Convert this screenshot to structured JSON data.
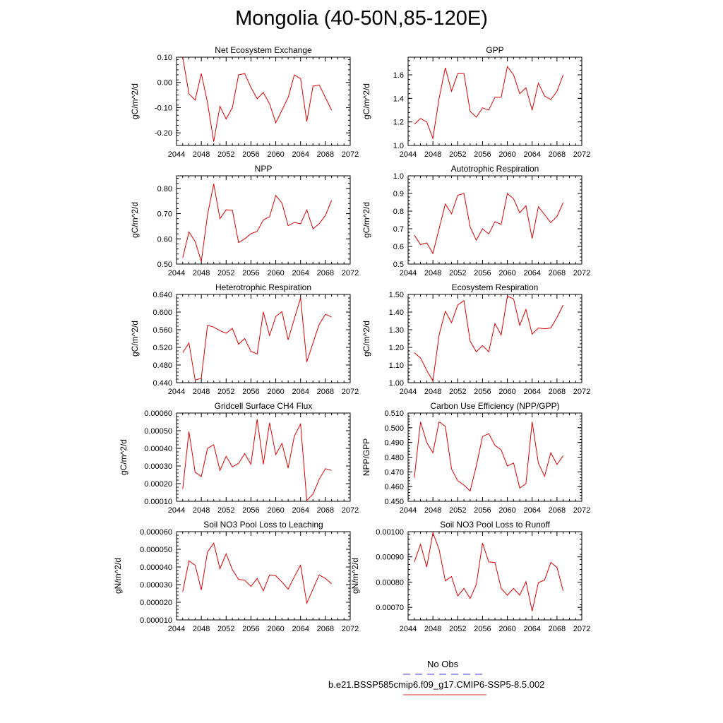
{
  "page": {
    "title": "Mongolia (40-50N,85-120E)"
  },
  "legend": {
    "entries": [
      {
        "label": "No Obs",
        "color": "#3b3bdc",
        "style": "dashed"
      },
      {
        "label": "b.e21.BSSP585cmip6.f09_g17.CMIP6-SSP5-8.5.002",
        "color": "#e03030",
        "style": "solid"
      }
    ]
  },
  "chart_data": [
    {
      "type": "line",
      "title": "Net Ecosystem Exchange",
      "ylabel": "gC/m^2/d",
      "xlim": [
        2044,
        2072
      ],
      "ylim": [
        -0.25,
        0.1
      ],
      "xticks": [
        "2044",
        "2048",
        "2052",
        "2056",
        "2060",
        "2064",
        "2068",
        "2072"
      ],
      "yticks": [
        0.1,
        0.0,
        -0.1,
        -0.2
      ],
      "ytick_labels": [
        "0.10",
        "0.00",
        "-0.10",
        "-0.20"
      ],
      "series": [
        {
          "color": "#e00000",
          "x": [
            2045,
            2046,
            2047,
            2048,
            2049,
            2050,
            2051,
            2052,
            2053,
            2054,
            2055,
            2056,
            2057,
            2058,
            2059,
            2060,
            2061,
            2062,
            2063,
            2064,
            2065,
            2066,
            2067,
            2068,
            2069
          ],
          "values": [
            0.1,
            -0.045,
            -0.07,
            0.035,
            -0.08,
            -0.235,
            -0.095,
            -0.145,
            -0.1,
            0.03,
            0.035,
            -0.02,
            -0.065,
            -0.04,
            -0.085,
            -0.16,
            -0.11,
            -0.06,
            0.03,
            0.015,
            -0.155,
            -0.015,
            -0.01,
            -0.06,
            -0.11
          ]
        }
      ]
    },
    {
      "type": "line",
      "title": "GPP",
      "ylabel": "gC/m^2/d",
      "xlim": [
        2044,
        2072
      ],
      "ylim": [
        1.0,
        1.75
      ],
      "xticks": [
        "2044",
        "2048",
        "2052",
        "2056",
        "2060",
        "2064",
        "2068",
        "2072"
      ],
      "yticks": [
        1.0,
        1.2,
        1.4,
        1.6
      ],
      "ytick_labels": [
        "1.0",
        "1.2",
        "1.4",
        "1.6"
      ],
      "series": [
        {
          "color": "#e00000",
          "x": [
            2045,
            2046,
            2047,
            2048,
            2049,
            2050,
            2051,
            2052,
            2053,
            2054,
            2055,
            2056,
            2057,
            2058,
            2059,
            2060,
            2061,
            2062,
            2063,
            2064,
            2065,
            2066,
            2067,
            2068,
            2069
          ],
          "values": [
            1.18,
            1.23,
            1.2,
            1.06,
            1.4,
            1.66,
            1.46,
            1.61,
            1.61,
            1.29,
            1.24,
            1.32,
            1.3,
            1.41,
            1.41,
            1.67,
            1.6,
            1.44,
            1.49,
            1.3,
            1.53,
            1.42,
            1.39,
            1.46,
            1.6
          ]
        }
      ]
    },
    {
      "type": "line",
      "title": "NPP",
      "ylabel": "gC/m^2/d",
      "xlim": [
        2044,
        2072
      ],
      "ylim": [
        0.5,
        0.85
      ],
      "xticks": [
        "2044",
        "2048",
        "2052",
        "2056",
        "2060",
        "2064",
        "2068",
        "2072"
      ],
      "yticks": [
        0.5,
        0.6,
        0.7,
        0.8
      ],
      "ytick_labels": [
        "0.50",
        "0.60",
        "0.70",
        "0.80"
      ],
      "series": [
        {
          "color": "#e00000",
          "x": [
            2045,
            2046,
            2047,
            2048,
            2049,
            2050,
            2051,
            2052,
            2053,
            2054,
            2055,
            2056,
            2057,
            2058,
            2059,
            2060,
            2061,
            2062,
            2063,
            2064,
            2065,
            2066,
            2067,
            2068,
            2069
          ],
          "values": [
            0.525,
            0.627,
            0.59,
            0.51,
            0.695,
            0.818,
            0.68,
            0.715,
            0.713,
            0.585,
            0.6,
            0.62,
            0.63,
            0.675,
            0.688,
            0.772,
            0.742,
            0.652,
            0.665,
            0.66,
            0.715,
            0.64,
            0.66,
            0.693,
            0.752
          ]
        }
      ]
    },
    {
      "type": "line",
      "title": "Autotrophic Respiration",
      "ylabel": "gC/m^2/d",
      "xlim": [
        2044,
        2072
      ],
      "ylim": [
        0.5,
        1.0
      ],
      "xticks": [
        "2044",
        "2048",
        "2052",
        "2056",
        "2060",
        "2064",
        "2068",
        "2072"
      ],
      "yticks": [
        0.5,
        0.6,
        0.7,
        0.8,
        0.9,
        1.0
      ],
      "ytick_labels": [
        "0.5",
        "0.6",
        "0.7",
        "0.8",
        "0.9",
        "1.0"
      ],
      "series": [
        {
          "color": "#e00000",
          "x": [
            2045,
            2046,
            2047,
            2048,
            2049,
            2050,
            2051,
            2052,
            2053,
            2054,
            2055,
            2056,
            2057,
            2058,
            2059,
            2060,
            2061,
            2062,
            2063,
            2064,
            2065,
            2066,
            2067,
            2068,
            2069
          ],
          "values": [
            0.665,
            0.61,
            0.62,
            0.56,
            0.7,
            0.84,
            0.785,
            0.89,
            0.9,
            0.71,
            0.635,
            0.7,
            0.67,
            0.74,
            0.725,
            0.9,
            0.87,
            0.79,
            0.83,
            0.645,
            0.825,
            0.78,
            0.735,
            0.77,
            0.848
          ]
        }
      ]
    },
    {
      "type": "line",
      "title": "Heterotrophic Respiration",
      "ylabel": "gC/m^2/d",
      "xlim": [
        2044,
        2072
      ],
      "ylim": [
        0.44,
        0.64
      ],
      "xticks": [
        "2044",
        "2048",
        "2052",
        "2056",
        "2060",
        "2064",
        "2068",
        "2072"
      ],
      "yticks": [
        0.44,
        0.48,
        0.52,
        0.56,
        0.6,
        0.64
      ],
      "ytick_labels": [
        "0.440",
        "0.480",
        "0.520",
        "0.560",
        "0.600",
        "0.640"
      ],
      "series": [
        {
          "color": "#e00000",
          "x": [
            2045,
            2046,
            2047,
            2048,
            2049,
            2050,
            2051,
            2052,
            2053,
            2054,
            2055,
            2056,
            2057,
            2058,
            2059,
            2060,
            2061,
            2062,
            2063,
            2064,
            2065,
            2066,
            2067,
            2068,
            2069
          ],
          "values": [
            0.508,
            0.53,
            0.446,
            0.45,
            0.57,
            0.566,
            0.558,
            0.552,
            0.563,
            0.527,
            0.54,
            0.511,
            0.505,
            0.6,
            0.547,
            0.59,
            0.601,
            0.537,
            0.585,
            0.632,
            0.487,
            0.53,
            0.572,
            0.595,
            0.589
          ]
        }
      ]
    },
    {
      "type": "line",
      "title": "Ecosystem Respiration",
      "ylabel": "gC/m^2/d",
      "xlim": [
        2044,
        2072
      ],
      "ylim": [
        1.0,
        1.5
      ],
      "xticks": [
        "2044",
        "2048",
        "2052",
        "2056",
        "2060",
        "2064",
        "2068",
        "2072"
      ],
      "yticks": [
        1.0,
        1.1,
        1.2,
        1.3,
        1.4,
        1.5
      ],
      "ytick_labels": [
        "1.00",
        "1.10",
        "1.20",
        "1.30",
        "1.40",
        "1.50"
      ],
      "series": [
        {
          "color": "#e00000",
          "x": [
            2045,
            2046,
            2047,
            2048,
            2049,
            2050,
            2051,
            2052,
            2053,
            2054,
            2055,
            2056,
            2057,
            2058,
            2059,
            2060,
            2061,
            2062,
            2063,
            2064,
            2065,
            2066,
            2067,
            2068,
            2069
          ],
          "values": [
            1.17,
            1.14,
            1.07,
            1.01,
            1.27,
            1.405,
            1.34,
            1.44,
            1.465,
            1.235,
            1.175,
            1.21,
            1.175,
            1.335,
            1.27,
            1.49,
            1.475,
            1.325,
            1.415,
            1.275,
            1.31,
            1.305,
            1.31,
            1.37,
            1.44
          ]
        }
      ]
    },
    {
      "type": "line",
      "title": "Gridcell Surface CH4 Flux",
      "ylabel": "gC/m^2/d",
      "xlim": [
        2044,
        2072
      ],
      "ylim": [
        0.0001,
        0.0006
      ],
      "xticks": [
        "2044",
        "2048",
        "2052",
        "2056",
        "2060",
        "2064",
        "2068",
        "2072"
      ],
      "yticks": [
        0.0001,
        0.0002,
        0.0003,
        0.0004,
        0.0005,
        0.0006
      ],
      "ytick_labels": [
        "0.00010",
        "0.00020",
        "0.00030",
        "0.00040",
        "0.00050",
        "0.00060"
      ],
      "series": [
        {
          "color": "#e00000",
          "x": [
            2045,
            2046,
            2047,
            2048,
            2049,
            2050,
            2051,
            2052,
            2053,
            2054,
            2055,
            2056,
            2057,
            2058,
            2059,
            2060,
            2061,
            2062,
            2063,
            2064,
            2065,
            2066,
            2067,
            2068,
            2069
          ],
          "values": [
            0.00017,
            0.000495,
            0.000265,
            0.00024,
            0.0004,
            0.00042,
            0.000275,
            0.000355,
            0.000295,
            0.000315,
            0.00037,
            0.00031,
            0.000565,
            0.00031,
            0.000545,
            0.000365,
            0.000428,
            0.000288,
            0.00047,
            0.000538,
            0.000105,
            0.00014,
            0.000225,
            0.000285,
            0.000275
          ]
        }
      ]
    },
    {
      "type": "line",
      "title": "Carbon Use Efficiency (NPP/GPP)",
      "ylabel": "NPP/GPP",
      "xlim": [
        2044,
        2072
      ],
      "ylim": [
        0.45,
        0.51
      ],
      "xticks": [
        "2044",
        "2048",
        "2052",
        "2056",
        "2060",
        "2064",
        "2068",
        "2072"
      ],
      "yticks": [
        0.45,
        0.46,
        0.47,
        0.48,
        0.49,
        0.5,
        0.51
      ],
      "ytick_labels": [
        "0.450",
        "0.460",
        "0.470",
        "0.480",
        "0.490",
        "0.500",
        "0.510"
      ],
      "series": [
        {
          "color": "#e00000",
          "x": [
            2045,
            2046,
            2047,
            2048,
            2049,
            2050,
            2051,
            2052,
            2053,
            2054,
            2055,
            2056,
            2057,
            2058,
            2059,
            2060,
            2061,
            2062,
            2063,
            2064,
            2065,
            2066,
            2067,
            2068,
            2069
          ],
          "values": [
            0.466,
            0.504,
            0.49,
            0.483,
            0.504,
            0.501,
            0.472,
            0.464,
            0.461,
            0.457,
            0.474,
            0.494,
            0.496,
            0.488,
            0.485,
            0.474,
            0.476,
            0.459,
            0.462,
            0.504,
            0.476,
            0.467,
            0.483,
            0.475,
            0.481
          ]
        }
      ]
    },
    {
      "type": "line",
      "title": "Soil NO3 Pool Loss to Leaching",
      "ylabel": "gN/m^2/d",
      "xlim": [
        2044,
        2072
      ],
      "ylim": [
        1e-05,
        6e-05
      ],
      "xticks": [
        "2044",
        "2048",
        "2052",
        "2056",
        "2060",
        "2064",
        "2068",
        "2072"
      ],
      "yticks": [
        1e-05,
        2e-05,
        3e-05,
        4e-05,
        5e-05,
        6e-05
      ],
      "ytick_labels": [
        "0.000010",
        "0.000020",
        "0.000030",
        "0.000040",
        "0.000050",
        "0.000060"
      ],
      "series": [
        {
          "color": "#e00000",
          "x": [
            2045,
            2046,
            2047,
            2048,
            2049,
            2050,
            2051,
            2052,
            2053,
            2054,
            2055,
            2056,
            2057,
            2058,
            2059,
            2060,
            2061,
            2062,
            2063,
            2064,
            2065,
            2066,
            2067,
            2068,
            2069
          ],
          "values": [
            2.6e-05,
            4.35e-05,
            4.1e-05,
            2.7e-05,
            4.85e-05,
            5.35e-05,
            3.9e-05,
            4.75e-05,
            3.85e-05,
            3.3e-05,
            3.25e-05,
            2.9e-05,
            3.35e-05,
            2.65e-05,
            3.55e-05,
            3.5e-05,
            3.15e-05,
            2.75e-05,
            3.45e-05,
            4.1e-05,
            1.95e-05,
            2.75e-05,
            3.55e-05,
            3.35e-05,
            3.05e-05
          ]
        }
      ]
    },
    {
      "type": "line",
      "title": "Soil NO3 Pool Loss to Runoff",
      "ylabel": "gN/m^2/d",
      "xlim": [
        2044,
        2072
      ],
      "ylim": [
        0.00065,
        0.001
      ],
      "xticks": [
        "2044",
        "2048",
        "2052",
        "2056",
        "2060",
        "2064",
        "2068",
        "2072"
      ],
      "yticks": [
        0.0007,
        0.0008,
        0.0009,
        0.001
      ],
      "ytick_labels": [
        "0.00070",
        "0.00080",
        "0.00090",
        "0.00100"
      ],
      "series": [
        {
          "color": "#e00000",
          "x": [
            2045,
            2046,
            2047,
            2048,
            2049,
            2050,
            2051,
            2052,
            2053,
            2054,
            2055,
            2056,
            2057,
            2058,
            2059,
            2060,
            2061,
            2062,
            2063,
            2064,
            2065,
            2066,
            2067,
            2068,
            2069
          ],
          "values": [
            0.00088,
            0.00095,
            0.00086,
            0.000995,
            0.00093,
            0.000805,
            0.000822,
            0.000745,
            0.000775,
            0.000735,
            0.00079,
            0.000955,
            0.00088,
            0.000878,
            0.000775,
            0.000748,
            0.000775,
            0.000748,
            0.000802,
            0.000685,
            0.000798,
            0.000808,
            0.000878,
            0.000858,
            0.000765
          ]
        }
      ]
    }
  ]
}
